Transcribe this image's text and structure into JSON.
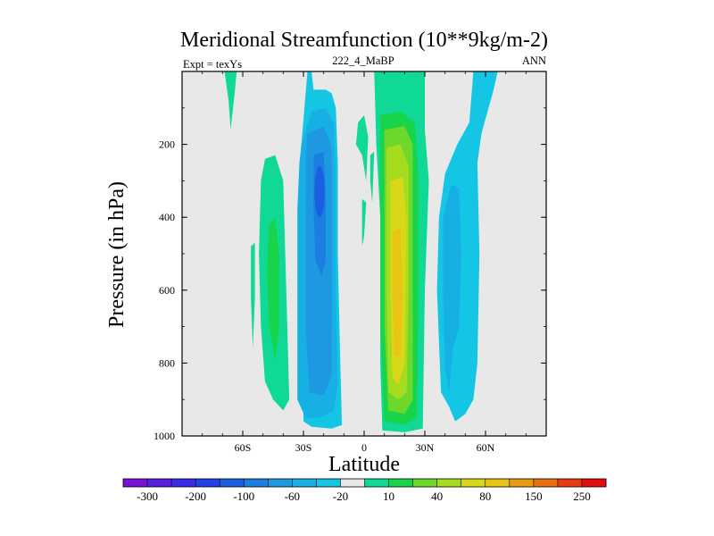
{
  "chart_data": {
    "type": "filled-contour",
    "title": "Meridional Streamfunction (10**9kg/m-2)",
    "subtitle_left": "Expt = texYs",
    "subtitle_center": "222_4_MaBP",
    "subtitle_right": "ANN",
    "xlabel": "Latitude",
    "ylabel": "Pressure (in hPa)",
    "xlim": [
      -90,
      90
    ],
    "ylim": [
      1000,
      0
    ],
    "x_ticks": [
      {
        "value": -60,
        "label": "60S"
      },
      {
        "value": -30,
        "label": "30S"
      },
      {
        "value": 0,
        "label": "0"
      },
      {
        "value": 30,
        "label": "30N"
      },
      {
        "value": 60,
        "label": "60N"
      }
    ],
    "y_ticks": [
      {
        "value": 200,
        "label": "200"
      },
      {
        "value": 400,
        "label": "400"
      },
      {
        "value": 600,
        "label": "600"
      },
      {
        "value": 800,
        "label": "800"
      },
      {
        "value": 1000,
        "label": "1000"
      }
    ],
    "colorbar": {
      "boundaries": [
        -300,
        -250,
        -200,
        -150,
        -100,
        -80,
        -60,
        -40,
        -20,
        -10,
        10,
        20,
        40,
        60,
        80,
        100,
        150,
        200,
        250,
        300
      ],
      "tick_labels": [
        "-300",
        "-200",
        "-100",
        "-60",
        "-20",
        "10",
        "40",
        "80",
        "150",
        "250"
      ],
      "colors": [
        "#7a12d6",
        "#5a1ee0",
        "#3a2ae6",
        "#2240e8",
        "#1a5fe0",
        "#1a7fe0",
        "#1e98e0",
        "#17b0e4",
        "#14c6e4",
        "#e8e8e8",
        "#10d896",
        "#18d44a",
        "#6ed82a",
        "#a6dc20",
        "#d8d818",
        "#e8c414",
        "#e89a12",
        "#e87012",
        "#e83c10",
        "#e01010"
      ]
    },
    "background_color": "#e8e8e8",
    "features": [
      {
        "name": "southern-hadley-cell",
        "sign": "negative",
        "lat_range": [
          -35,
          -10
        ],
        "p_range": [
          30,
          980
        ],
        "peak_level": "-80 to -100",
        "peak_lat": -22,
        "peak_p": 330
      },
      {
        "name": "northern-hadley-cell",
        "sign": "positive",
        "lat_range": [
          5,
          30
        ],
        "p_range": [
          0,
          980
        ],
        "peak_level": "80 to 100",
        "peak_lat": 17,
        "peak_p": 600
      },
      {
        "name": "southern-ferrel-cell",
        "sign": "positive",
        "lat_range": [
          -55,
          -40
        ],
        "p_range": [
          230,
          900
        ],
        "peak_level": "20 to 40",
        "peak_lat": -48,
        "peak_p": 620
      },
      {
        "name": "northern-ferrel-cell",
        "sign": "negative",
        "lat_range": [
          36,
          62
        ],
        "p_range": [
          0,
          960
        ],
        "peak_level": "-40 to -60",
        "peak_lat": 45,
        "peak_p": 560
      },
      {
        "name": "southern-polar-cell",
        "sign": "positive",
        "lat_range": [
          -68,
          -64
        ],
        "p_range": [
          0,
          160
        ],
        "peak_level": "10 to 20"
      }
    ]
  }
}
